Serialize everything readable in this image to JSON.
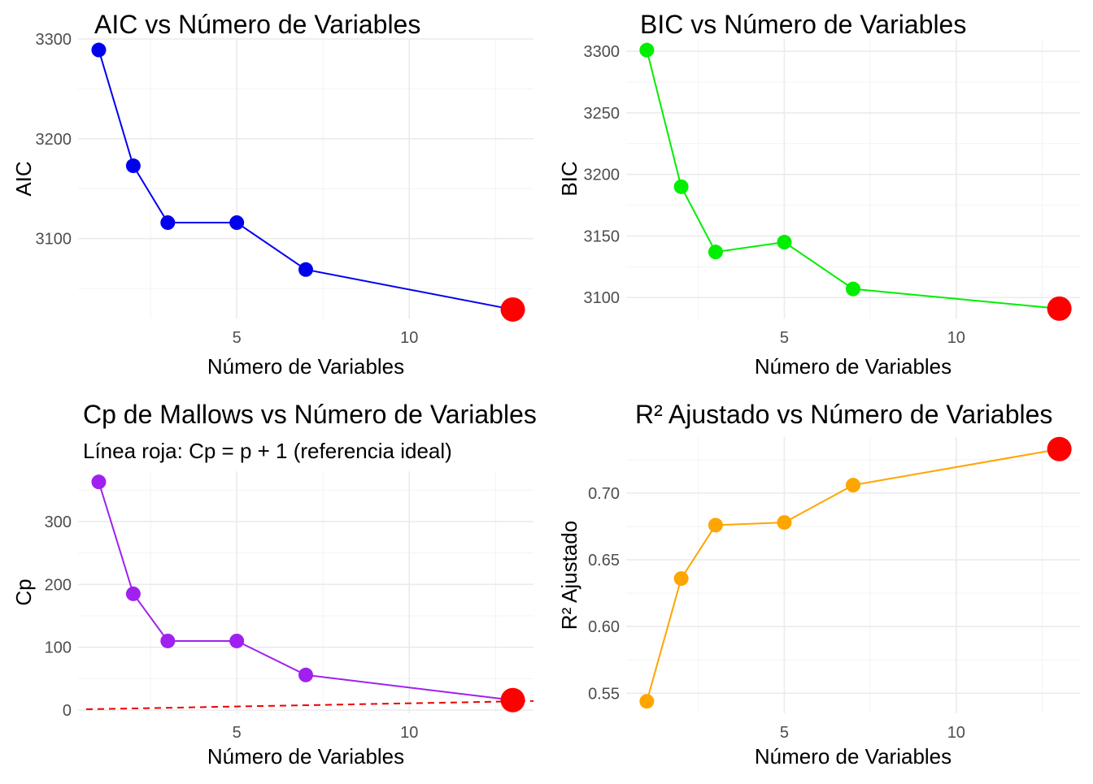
{
  "chart_data": [
    {
      "type": "line",
      "title": "AIC vs Número de Variables",
      "subtitle": "",
      "xlabel": "Número de Variables",
      "ylabel": "AIC",
      "color": "#0000ee",
      "highlight_color": "#ff0000",
      "grid": true,
      "xlim": [
        0.4,
        13.6
      ],
      "ylim": [
        3020,
        3300
      ],
      "xticks": [
        5,
        10
      ],
      "xtick_labels": [
        "5",
        "10"
      ],
      "yticks": [
        3100,
        3200,
        3300
      ],
      "ytick_labels": [
        "3100",
        "3200",
        "3300"
      ],
      "series": [
        {
          "x": [
            1,
            2,
            3,
            5,
            7,
            13
          ],
          "y": [
            3289,
            3173,
            3116,
            3116,
            3069,
            3029
          ]
        }
      ],
      "highlight_point": {
        "x": 13,
        "y": 3029
      }
    },
    {
      "type": "line",
      "title": "BIC vs Número de Variables",
      "subtitle": "",
      "xlabel": "Número de Variables",
      "ylabel": "BIC",
      "color": "#00ee00",
      "highlight_color": "#ff0000",
      "grid": true,
      "xlim": [
        0.4,
        13.6
      ],
      "ylim": [
        3083,
        3310
      ],
      "xticks": [
        5,
        10
      ],
      "xtick_labels": [
        "5",
        "10"
      ],
      "yticks": [
        3100,
        3150,
        3200,
        3250,
        3300
      ],
      "ytick_labels": [
        "3100",
        "3150",
        "3200",
        "3250",
        "3300"
      ],
      "series": [
        {
          "x": [
            1,
            2,
            3,
            5,
            7,
            13
          ],
          "y": [
            3301,
            3190,
            3137,
            3145,
            3107,
            3091
          ]
        }
      ],
      "highlight_point": {
        "x": 13,
        "y": 3091
      }
    },
    {
      "type": "line",
      "title": "Cp de Mallows vs Número de Variables",
      "subtitle": "Línea roja: Cp = p + 1 (referencia ideal)",
      "xlabel": "Número de Variables",
      "ylabel": "Cp",
      "color": "#a020f0",
      "highlight_color": "#ff0000",
      "reference_color": "#ee0000",
      "grid": true,
      "xlim": [
        0.4,
        13.6
      ],
      "ylim": [
        -5,
        380
      ],
      "xticks": [
        5,
        10
      ],
      "xtick_labels": [
        "5",
        "10"
      ],
      "yticks": [
        0,
        100,
        200,
        300
      ],
      "ytick_labels": [
        "0",
        "100",
        "200",
        "300"
      ],
      "series": [
        {
          "x": [
            1,
            2,
            3,
            5,
            7,
            13
          ],
          "y": [
            363,
            185,
            110,
            110,
            56,
            16
          ]
        }
      ],
      "highlight_point": {
        "x": 13,
        "y": 16
      },
      "reference_line": {
        "x": [
          0.4,
          13.6
        ],
        "y": [
          1.4,
          14.6
        ],
        "style": "dashed"
      }
    },
    {
      "type": "line",
      "title": "R² Ajustado vs Número de Variables",
      "subtitle": "",
      "xlabel": "Número de Variables",
      "ylabel": "R² Ajustado",
      "color": "#ffa500",
      "highlight_color": "#ff0000",
      "grid": true,
      "xlim": [
        0.4,
        13.6
      ],
      "ylim": [
        0.535,
        0.742
      ],
      "xticks": [
        5,
        10
      ],
      "xtick_labels": [
        "5",
        "10"
      ],
      "yticks": [
        0.55,
        0.6,
        0.65,
        0.7
      ],
      "ytick_labels": [
        "0.55",
        "0.60",
        "0.65",
        "0.70"
      ],
      "series": [
        {
          "x": [
            1,
            2,
            3,
            5,
            7,
            13
          ],
          "y": [
            0.544,
            0.636,
            0.676,
            0.678,
            0.706,
            0.733
          ]
        }
      ],
      "highlight_point": {
        "x": 13,
        "y": 0.733
      }
    }
  ]
}
